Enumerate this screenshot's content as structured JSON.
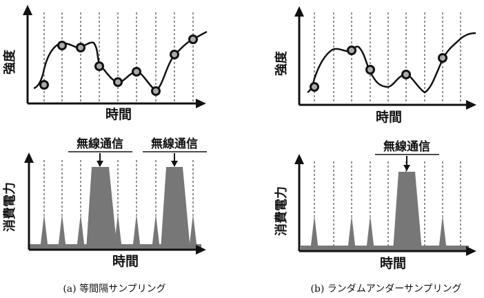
{
  "labels": {
    "intensity": "強度",
    "time": "時間",
    "power": "消費電力",
    "wireless": "無線通信"
  },
  "captions": {
    "left": "(a) 等間隔サンプリング",
    "right": "(b) ランダムアンダーサンプリング"
  },
  "colors": {
    "stroke": "#111111",
    "fill": "#777777",
    "sample_fill": "#aaaaaa"
  },
  "panels": [
    {
      "id": "uniform",
      "samples_at": [
        1,
        2,
        3,
        4,
        5,
        6,
        7,
        8,
        9
      ],
      "wireless_bursts": [
        {
          "from": 3,
          "to": 4
        },
        {
          "from": 7,
          "to": 8
        }
      ]
    },
    {
      "id": "random",
      "samples_at": [
        1,
        3,
        4,
        6,
        8
      ],
      "wireless_bursts": [
        {
          "from": 5,
          "to": 6
        }
      ]
    }
  ]
}
